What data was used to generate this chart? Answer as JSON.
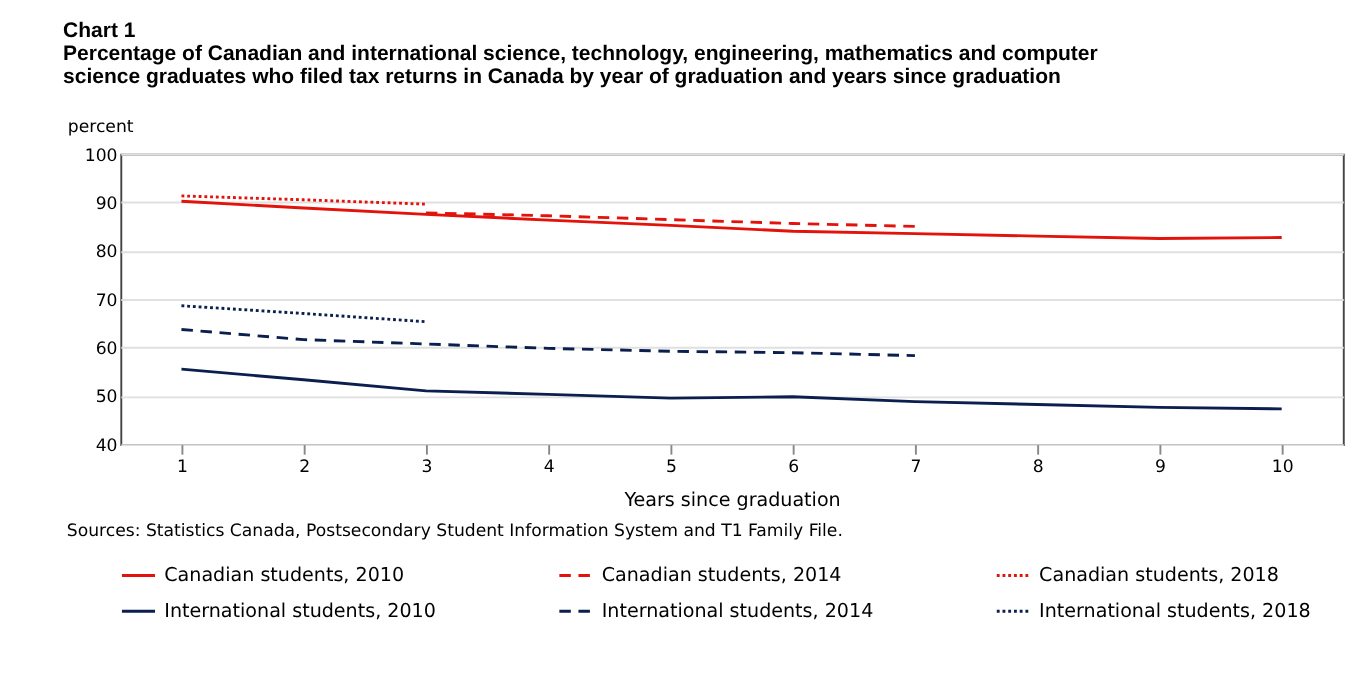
{
  "chart_data": {
    "type": "line",
    "title": "Chart 1",
    "subtitle": "Percentage of Canadian and international science, technology, engineering, mathematics and computer science graduates who filed tax returns in Canada by year of graduation and years since graduation",
    "xlabel": "Years since graduation",
    "ylabel": "percent",
    "x": [
      1,
      2,
      3,
      4,
      5,
      6,
      7,
      8,
      9,
      10
    ],
    "series": [
      {
        "name": "Canadian students, 2010",
        "color": "#e3120b",
        "line_style": "solid",
        "values": [
          90.2,
          88.8,
          87.5,
          86.3,
          85.2,
          84.0,
          83.5,
          83.0,
          82.5,
          82.7
        ]
      },
      {
        "name": "Canadian students, 2014",
        "color": "#e3120b",
        "line_style": "dashed",
        "values": [
          null,
          null,
          87.8,
          87.2,
          86.4,
          85.6,
          85.0,
          null,
          null,
          null
        ]
      },
      {
        "name": "Canadian students, 2018",
        "color": "#e3120b",
        "line_style": "dotted",
        "values": [
          91.3,
          90.5,
          89.6,
          null,
          null,
          null,
          null,
          null,
          null,
          null
        ]
      },
      {
        "name": "International students, 2010",
        "color": "#0b1f4f",
        "line_style": "solid",
        "values": [
          55.5,
          53.3,
          51.0,
          50.3,
          49.5,
          49.8,
          48.8,
          48.2,
          47.6,
          47.3
        ]
      },
      {
        "name": "International students, 2014",
        "color": "#0b1f4f",
        "line_style": "dashed",
        "values": [
          63.7,
          61.6,
          60.7,
          59.8,
          59.2,
          58.9,
          58.3,
          null,
          null,
          null
        ]
      },
      {
        "name": "International students, 2018",
        "color": "#0b1f4f",
        "line_style": "dotted",
        "values": [
          68.6,
          67.0,
          65.3,
          null,
          null,
          null,
          null,
          null,
          null,
          null
        ]
      }
    ],
    "xlim": [
      0.5,
      10.5
    ],
    "xticks": [
      1,
      2,
      3,
      4,
      5,
      6,
      7,
      8,
      9,
      10
    ],
    "ylim": [
      40,
      100
    ],
    "yticks": [
      40,
      50,
      60,
      70,
      80,
      90,
      100
    ],
    "grid": "y",
    "legend": "bottom",
    "marker": "none",
    "annotations": [
      "Sources: Statistics Canada, Postsecondary Student Information System and T1 Family File."
    ]
  }
}
